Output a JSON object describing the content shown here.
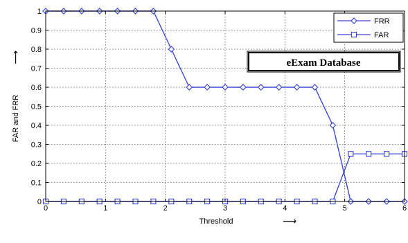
{
  "chart_data": {
    "type": "line",
    "title": "",
    "xlabel": "Threshold",
    "ylabel": "FAR and FRR",
    "xlim": [
      0,
      6
    ],
    "ylim": [
      0,
      1
    ],
    "xticks": [
      "0",
      "1",
      "2",
      "3",
      "4",
      "5",
      "6"
    ],
    "yticks": [
      "0",
      "0.1",
      "0.2",
      "0.3",
      "0.4",
      "0.5",
      "0.6",
      "0.7",
      "0.8",
      "0.9",
      "1"
    ],
    "grid": true,
    "legend": "top-right",
    "annotation": "eExam Database",
    "x_arrow": "⟶",
    "y_arrow": "⟶",
    "line_color": "#3b48d8",
    "series": [
      {
        "name": "FRR",
        "marker": "diamond",
        "x": [
          0,
          0.3,
          0.6,
          0.9,
          1.2,
          1.5,
          1.8,
          2.1,
          2.4,
          2.7,
          3.0,
          3.3,
          3.6,
          3.9,
          4.2,
          4.5,
          4.8,
          5.1,
          5.4,
          5.7,
          6.0
        ],
        "y": [
          1,
          1,
          1,
          1,
          1,
          1,
          1,
          0.8,
          0.6,
          0.6,
          0.6,
          0.6,
          0.6,
          0.6,
          0.6,
          0.6,
          0.4,
          0,
          0,
          0,
          0
        ]
      },
      {
        "name": "FAR",
        "marker": "square",
        "x": [
          0,
          0.3,
          0.6,
          0.9,
          1.2,
          1.5,
          1.8,
          2.1,
          2.4,
          2.7,
          3.0,
          3.3,
          3.6,
          3.9,
          4.2,
          4.5,
          4.8,
          5.1,
          5.4,
          5.7,
          6.0
        ],
        "y": [
          0,
          0,
          0,
          0,
          0,
          0,
          0,
          0,
          0,
          0,
          0,
          0,
          0,
          0,
          0,
          0,
          0,
          0.25,
          0.25,
          0.25,
          0.25
        ]
      }
    ]
  }
}
